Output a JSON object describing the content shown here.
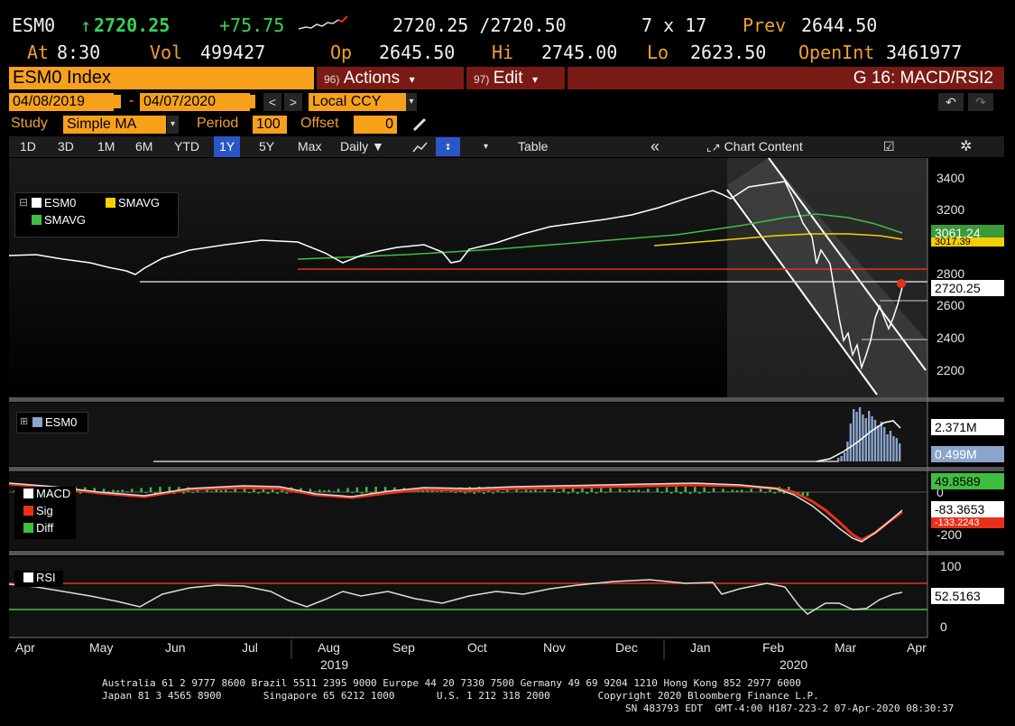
{
  "quote": {
    "ticker": "ESM0",
    "arrow": "↑",
    "last": "2720.25",
    "change": "+75.75",
    "bid_ask": "2720.25 /2720.50",
    "size": "7 x 17",
    "prev_label": "Prev",
    "prev": "2644.50",
    "at_label": "At",
    "time": "8:30",
    "vol_label": "Vol",
    "vol": "499427",
    "op_label": "Op",
    "op": "2645.50",
    "hi_label": "Hi",
    "hi": "2745.00",
    "lo_label": "Lo",
    "lo": "2623.50",
    "oi_label": "OpenInt",
    "oi": "3461977"
  },
  "titlebar": {
    "security": "ESM0 Index",
    "actions_num": "96)",
    "actions": "Actions",
    "edit_num": "97)",
    "edit": "Edit",
    "page": "G 16: MACD/RSI2",
    "caret": "▾"
  },
  "range": {
    "start": "04/08/2019",
    "sep": "-",
    "end": "04/07/2020",
    "currency": "Local CCY"
  },
  "study": {
    "label": "Study",
    "type": "Simple MA",
    "period_label": "Period",
    "period": "100",
    "offset_label": "Offset",
    "offset": "0"
  },
  "toolbar": {
    "periods": [
      "1D",
      "3D",
      "1M",
      "6M",
      "YTD",
      "1Y",
      "5Y",
      "Max"
    ],
    "active": "1Y",
    "frequency": "Daily",
    "table": "Table",
    "collapse": "«",
    "chart_content": "Chart Content"
  },
  "price_panel": {
    "legend": [
      "ESM0",
      "SMAVG",
      "SMAVG"
    ],
    "legend_colors": [
      "#ffffff",
      "#f5d000",
      "#3fbf3f"
    ],
    "yticks": [
      "3400",
      "3200",
      "2800",
      "2600",
      "2400",
      "2200"
    ],
    "tags": [
      {
        "value": "3061.24",
        "bg": "#3a9a3a",
        "fg": "#fff"
      },
      {
        "value": "3017.39",
        "bg": "#f5d000",
        "fg": "#000"
      },
      {
        "value": "2720.25",
        "bg": "#ffffff",
        "fg": "#000"
      }
    ]
  },
  "volume_panel": {
    "legend": "ESM0",
    "tags": [
      {
        "value": "2.371M",
        "bg": "#ffffff",
        "fg": "#000"
      },
      {
        "value": "0.499M",
        "bg": "#8aa4cc",
        "fg": "#fff"
      }
    ]
  },
  "macd_panel": {
    "legend": [
      "MACD",
      "Sig",
      "Diff"
    ],
    "legend_colors": [
      "#ffffff",
      "#e8301a",
      "#3fbf3f"
    ],
    "yticks": [
      "0",
      "-200"
    ],
    "tags": [
      {
        "value": "49.8589",
        "bg": "#3fbf3f",
        "fg": "#000"
      },
      {
        "value": "-83.3653",
        "bg": "#ffffff",
        "fg": "#000"
      },
      {
        "value": "-133.2243",
        "bg": "#e8301a",
        "fg": "#fff"
      }
    ]
  },
  "rsi_panel": {
    "legend": "RSI",
    "yticks": [
      "100",
      "0"
    ],
    "tags": [
      {
        "value": "52.5163",
        "bg": "#ffffff",
        "fg": "#000"
      }
    ]
  },
  "xaxis": {
    "months": [
      "Apr",
      "May",
      "Jun",
      "Jul",
      "Aug",
      "Sep",
      "Oct",
      "Nov",
      "Dec",
      "Jan",
      "Feb",
      "Mar",
      "Apr"
    ],
    "years": [
      "2019",
      "2020"
    ]
  },
  "footer": {
    "line1": "Australia 61 2 9777 8600 Brazil 5511 2395 9000 Europe 44 20 7330 7500 Germany 49 69 9204 1210 Hong Kong 852 2977 6000",
    "line2": "Japan 81 3 4565 8900       Singapore 65 6212 1000       U.S. 1 212 318 2000        Copyright 2020 Bloomberg Finance L.P.",
    "line3": "SN 483793 EDT  GMT-4:00 H187-223-2 07-Apr-2020 08:30:37"
  }
}
